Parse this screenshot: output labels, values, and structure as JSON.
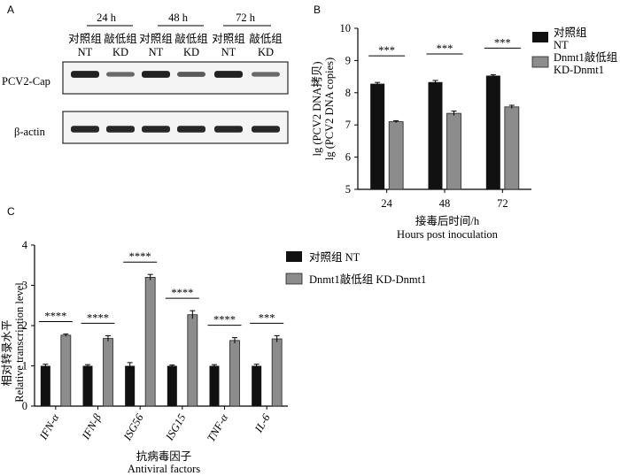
{
  "panel_labels": {
    "a": "A",
    "b": "B",
    "c": "C"
  },
  "colors": {
    "nt_bar": "#111111",
    "kd_bar": "#8c8c8c",
    "blot_bg": "#f4f4f4",
    "band": "#1a1a1a"
  },
  "western_blot": {
    "timepoints": [
      "24 h",
      "48 h",
      "72 h"
    ],
    "lane_labels_cn": [
      "对照组",
      "敲低组",
      "对照组",
      "敲低组",
      "对照组",
      "敲低组"
    ],
    "lane_labels_en": [
      "NT",
      "KD",
      "NT",
      "KD",
      "NT",
      "KD"
    ],
    "rows": [
      {
        "label": "PCV2-Cap",
        "band_strength": [
          0.95,
          0.45,
          0.95,
          0.55,
          0.95,
          0.45
        ]
      },
      {
        "label": "β-actin",
        "band_strength": [
          0.9,
          0.9,
          0.9,
          0.9,
          0.9,
          0.9
        ]
      }
    ]
  },
  "chart_data": [
    {
      "id": "B",
      "type": "bar",
      "categories": [
        "24",
        "48",
        "72"
      ],
      "series": [
        {
          "name": "对照组 NT",
          "legend_cn": "对照组",
          "legend_en": "NT",
          "values": [
            8.28,
            8.33,
            8.53
          ],
          "errors": [
            0.04,
            0.05,
            0.03
          ]
        },
        {
          "name": "Dnmt1敲低组 KD-Dnmt1",
          "legend_cn": "Dnmt1敲低组",
          "legend_en": "KD-Dnmt1",
          "values": [
            7.1,
            7.36,
            7.56
          ],
          "errors": [
            0.03,
            0.07,
            0.05
          ]
        }
      ],
      "significance": [
        "***",
        "***",
        "***"
      ],
      "xlabel_cn": "接毒后时间/h",
      "xlabel_en": "Hours post inoculation",
      "ylabel_cn": "lg (PCV2 DNA拷贝)",
      "ylabel_en": "lg (PCV2 DNA copies)",
      "ylim": [
        5,
        10
      ],
      "yticks": [
        "5",
        "6",
        "7",
        "8",
        "9",
        "10"
      ],
      "legend": "right"
    },
    {
      "id": "C",
      "type": "bar",
      "categories": [
        "IFN-α",
        "IFN-β",
        "ISG56",
        "ISG15",
        "TNF-α",
        "IL-6"
      ],
      "category_italic": [
        true,
        true,
        true,
        true,
        true,
        true
      ],
      "series": [
        {
          "name": "对照组 NT",
          "values": [
            1.0,
            1.0,
            1.0,
            1.0,
            1.0,
            1.0
          ],
          "errors": [
            0.04,
            0.03,
            0.08,
            0.02,
            0.03,
            0.04
          ]
        },
        {
          "name": "Dnmt1敲低组 KD-Dnmt1",
          "values": [
            1.76,
            1.68,
            3.2,
            2.27,
            1.63,
            1.67
          ],
          "errors": [
            0.03,
            0.07,
            0.07,
            0.1,
            0.07,
            0.08
          ]
        }
      ],
      "significance": [
        "****",
        "****",
        "****",
        "****",
        "****",
        "***"
      ],
      "xlabel_cn": "抗病毒因子",
      "xlabel_en": "Antiviral factors",
      "ylabel_cn": "相对转录水平",
      "ylabel_en": "Relative transcription level",
      "ylim": [
        0,
        4
      ],
      "yticks": [
        "0",
        "1",
        "2",
        "3",
        "4"
      ],
      "legend": "top-right"
    }
  ]
}
